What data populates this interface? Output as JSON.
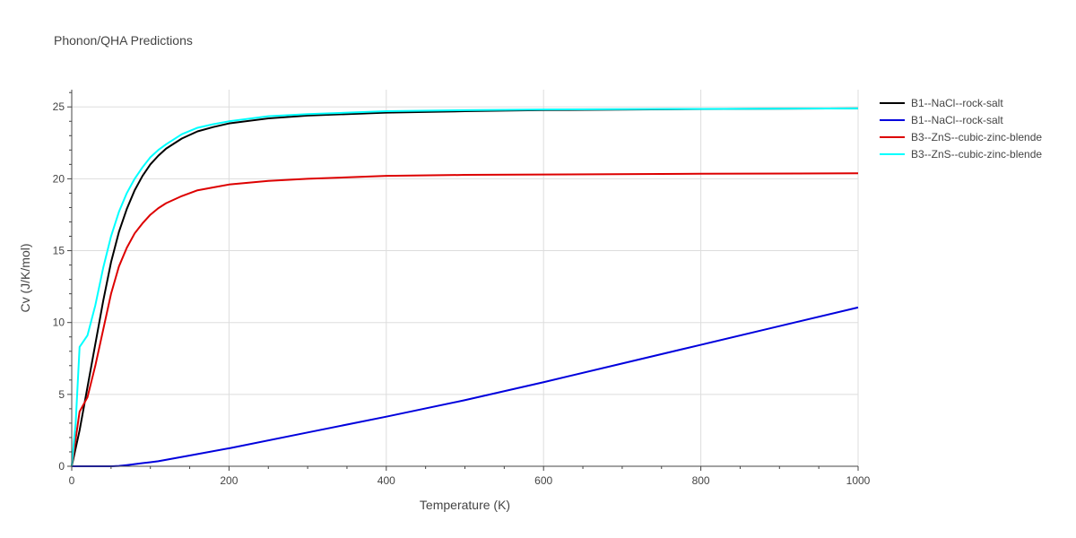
{
  "chart_data": {
    "type": "line",
    "title": "Phonon/QHA Predictions",
    "xlabel": "Temperature (K)",
    "ylabel": "Cv (J/K/mol)",
    "xlim": [
      0,
      1000
    ],
    "ylim": [
      0,
      26.2
    ],
    "x_ticks": [
      0,
      200,
      400,
      600,
      800,
      1000
    ],
    "y_ticks": [
      0,
      5,
      10,
      15,
      20,
      25
    ],
    "grid": true,
    "legend_position": "top-right",
    "series": [
      {
        "name": "B1--NaCl--rock-salt",
        "color": "#000000",
        "x": [
          0,
          10,
          20,
          30,
          40,
          50,
          60,
          70,
          80,
          90,
          100,
          110,
          120,
          140,
          160,
          180,
          200,
          250,
          300,
          400,
          500,
          600,
          800,
          1000
        ],
        "y": [
          0,
          2.5,
          5.5,
          8.5,
          11.5,
          14.2,
          16.3,
          17.9,
          19.2,
          20.2,
          21.0,
          21.6,
          22.1,
          22.8,
          23.3,
          23.6,
          23.85,
          24.2,
          24.4,
          24.6,
          24.7,
          24.78,
          24.85,
          24.9
        ]
      },
      {
        "name": "B1--NaCl--rock-salt",
        "color": "#0000dd",
        "x": [
          0,
          50,
          60,
          70,
          80,
          90,
          100,
          110,
          150,
          200,
          300,
          400,
          500,
          600,
          700,
          800,
          900,
          1000
        ],
        "y": [
          0,
          0,
          0.02,
          0.08,
          0.15,
          0.22,
          0.28,
          0.35,
          0.75,
          1.25,
          2.35,
          3.45,
          4.6,
          5.85,
          7.15,
          8.45,
          9.75,
          11.05
        ]
      },
      {
        "name": "B3--ZnS--cubic-zinc-blende",
        "color": "#dd0000",
        "x": [
          0,
          10,
          20,
          30,
          40,
          50,
          60,
          70,
          80,
          90,
          100,
          110,
          120,
          140,
          160,
          180,
          200,
          250,
          300,
          400,
          500,
          600,
          800,
          1000
        ],
        "y": [
          0,
          3.8,
          4.8,
          7.0,
          9.5,
          12.0,
          13.9,
          15.2,
          16.2,
          16.9,
          17.5,
          17.95,
          18.3,
          18.8,
          19.2,
          19.4,
          19.6,
          19.85,
          20.0,
          20.2,
          20.27,
          20.3,
          20.35,
          20.38
        ]
      },
      {
        "name": "B3--ZnS--cubic-zinc-blende",
        "color": "#00ffff",
        "x": [
          0,
          5,
          10,
          20,
          30,
          40,
          50,
          60,
          70,
          80,
          90,
          100,
          110,
          120,
          140,
          160,
          180,
          200,
          250,
          300,
          400,
          500,
          600,
          800,
          1000
        ],
        "y": [
          0,
          3.0,
          8.3,
          9.1,
          11.2,
          13.8,
          16.0,
          17.7,
          19.0,
          20.0,
          20.8,
          21.5,
          22.0,
          22.4,
          23.1,
          23.55,
          23.8,
          24.0,
          24.35,
          24.5,
          24.7,
          24.77,
          24.82,
          24.86,
          24.9
        ]
      }
    ]
  }
}
